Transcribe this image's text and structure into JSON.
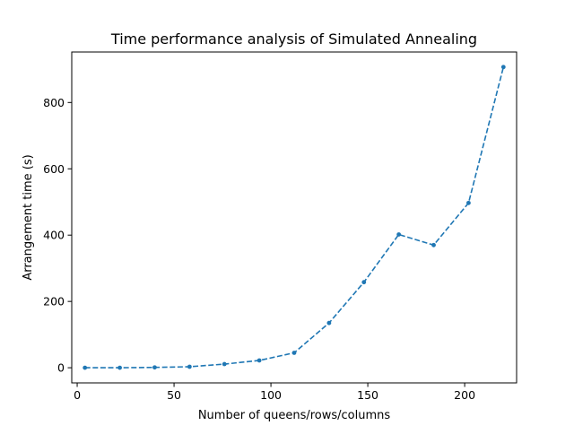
{
  "chart_data": {
    "type": "line",
    "title": "Time performance analysis of Simulated Annealing",
    "xlabel": "Number of queens/rows/columns",
    "ylabel": "Arrangement time (s)",
    "xlim": [
      -2.8,
      226.8
    ],
    "ylim": [
      -45.7,
      952.3
    ],
    "xticks": [
      0,
      50,
      100,
      150,
      200
    ],
    "yticks": [
      0,
      200,
      400,
      600,
      800
    ],
    "grid": false,
    "legend": "none",
    "series": [
      {
        "x": [
          4,
          22,
          40,
          58,
          76,
          94,
          112,
          130,
          148,
          166,
          184,
          202,
          220
        ],
        "y": [
          0,
          0,
          1,
          3,
          11,
          22,
          45,
          135,
          258,
          402,
          370,
          497,
          907
        ],
        "color": "#1f77b4",
        "line_style": "dashed",
        "marker": "circle"
      }
    ]
  }
}
